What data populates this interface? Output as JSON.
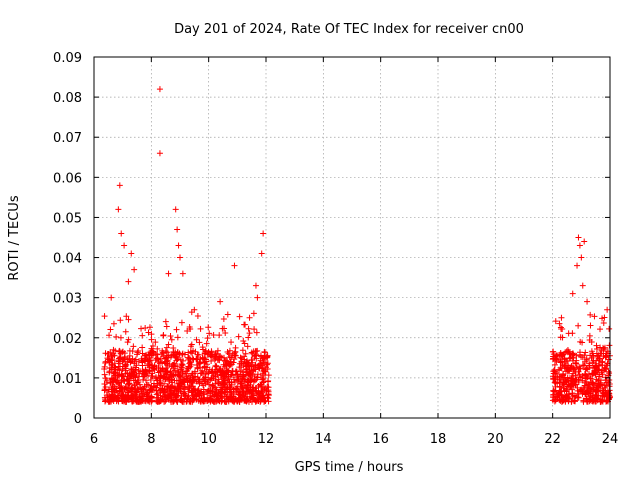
{
  "chart_data": {
    "type": "scatter",
    "title": "Day 201 of 2024, Rate Of TEC Index for receiver cn00",
    "xlabel": "GPS time / hours",
    "ylabel": "ROTI / TECUs",
    "xlim": [
      6,
      24
    ],
    "ylim": [
      0,
      0.09
    ],
    "x_ticks": [
      "6",
      "8",
      "10",
      "12",
      "14",
      "16",
      "18",
      "20",
      "22",
      "24"
    ],
    "y_ticks": [
      "0",
      "0.01",
      "0.02",
      "0.03",
      "0.04",
      "0.05",
      "0.06",
      "0.07",
      "0.08",
      "0.09"
    ],
    "grid": true,
    "marker": "+",
    "color": "#ff0000",
    "series": [
      {
        "name": "ROTI",
        "note": "dense band of points ~0.004-0.02 TECU between 6.3-12.1 h and 22.0-24.0 h, with isolated spikes listed below",
        "segments": [
          [
            6.35,
            12.1
          ],
          [
            22.0,
            24.0
          ]
        ],
        "band": [
          0.004,
          0.02
        ],
        "peaks": [
          {
            "x": 6.9,
            "y": 0.058
          },
          {
            "x": 6.85,
            "y": 0.052
          },
          {
            "x": 6.95,
            "y": 0.046
          },
          {
            "x": 7.05,
            "y": 0.043
          },
          {
            "x": 7.3,
            "y": 0.041
          },
          {
            "x": 7.4,
            "y": 0.037
          },
          {
            "x": 6.6,
            "y": 0.03
          },
          {
            "x": 7.2,
            "y": 0.034
          },
          {
            "x": 8.3,
            "y": 0.082
          },
          {
            "x": 8.3,
            "y": 0.066
          },
          {
            "x": 8.85,
            "y": 0.052
          },
          {
            "x": 8.9,
            "y": 0.047
          },
          {
            "x": 8.95,
            "y": 0.043
          },
          {
            "x": 9.0,
            "y": 0.04
          },
          {
            "x": 9.1,
            "y": 0.036
          },
          {
            "x": 8.6,
            "y": 0.036
          },
          {
            "x": 10.9,
            "y": 0.038
          },
          {
            "x": 11.9,
            "y": 0.046
          },
          {
            "x": 11.85,
            "y": 0.041
          },
          {
            "x": 11.65,
            "y": 0.033
          },
          {
            "x": 11.7,
            "y": 0.03
          },
          {
            "x": 9.5,
            "y": 0.027
          },
          {
            "x": 10.4,
            "y": 0.029
          },
          {
            "x": 22.9,
            "y": 0.045
          },
          {
            "x": 22.95,
            "y": 0.043
          },
          {
            "x": 23.0,
            "y": 0.04
          },
          {
            "x": 23.1,
            "y": 0.044
          },
          {
            "x": 22.85,
            "y": 0.038
          },
          {
            "x": 23.05,
            "y": 0.033
          },
          {
            "x": 22.7,
            "y": 0.031
          },
          {
            "x": 23.2,
            "y": 0.029
          },
          {
            "x": 23.9,
            "y": 0.027
          }
        ]
      }
    ]
  }
}
